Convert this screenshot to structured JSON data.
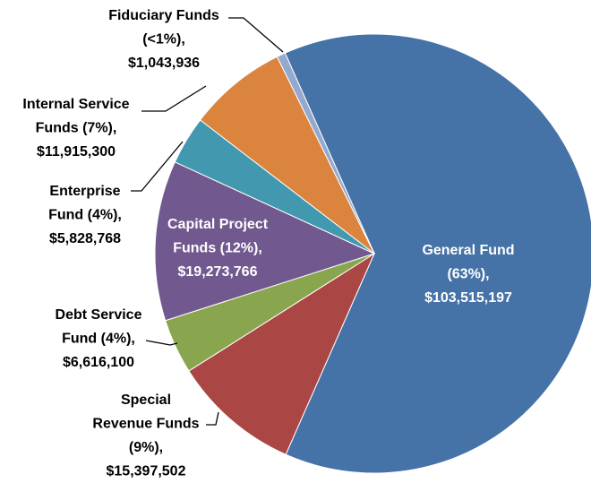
{
  "chart_data": {
    "type": "pie",
    "categories": [
      [
        "General Fund",
        "(63%),"
      ],
      [
        "Special",
        "Revenue Funds",
        "(9%),"
      ],
      [
        "Debt Service",
        "Fund (4%),"
      ],
      [
        "Capital Project",
        "Funds (12%),"
      ],
      [
        "Enterprise",
        "Fund (4%),"
      ],
      [
        "Internal Service",
        "Funds (7%),"
      ],
      [
        "Fiduciary Funds",
        "(<1%),"
      ]
    ],
    "values": [
      103515197,
      15397502,
      6616100,
      19273766,
      5828768,
      11915300,
      1043936
    ],
    "value_labels": [
      "$103,515,197",
      "$15,397,502",
      "$6,616,100",
      "$19,273,766",
      "$5,828,768",
      "$11,915,300",
      "$1,043,936"
    ],
    "colors": [
      "#4572a7",
      "#aa4643",
      "#89a54e",
      "#71588f",
      "#4198af",
      "#db843d",
      "#93a9cf"
    ]
  }
}
